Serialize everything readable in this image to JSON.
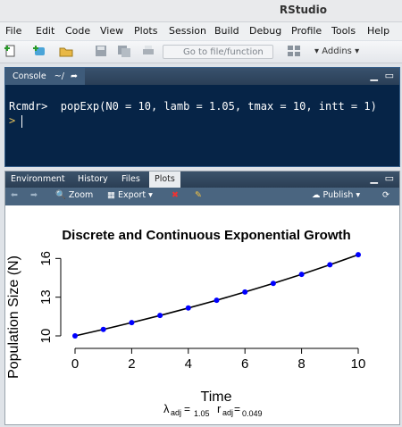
{
  "app": {
    "title": "RStudio"
  },
  "menu": [
    "File",
    "Edit",
    "Code",
    "View",
    "Plots",
    "Session",
    "Build",
    "Debug",
    "Profile",
    "Tools",
    "Help"
  ],
  "toolbar": {
    "goto_placeholder": "Go to file/function",
    "addins_label": "Addins"
  },
  "console": {
    "tab_label": "Console",
    "path": "~/",
    "lines": [
      "Rcmdr>  popExp(N0 = 10, lamb = 1.05, tmax = 10, intt = 1)",
      ">"
    ]
  },
  "plots_pane": {
    "tabs": [
      "Environment",
      "History",
      "Files",
      "Plots"
    ],
    "active_tab": "Plots",
    "toolbar": {
      "zoom": "Zoom",
      "export": "Export",
      "publish": "Publish"
    }
  },
  "chart_data": {
    "type": "line",
    "title": "Discrete and Continuous Exponential Growth",
    "xlabel": "Time",
    "ylabel": "Population Size (N)",
    "xlim": [
      0,
      10
    ],
    "ylim": [
      10,
      16.3
    ],
    "x_ticks": [
      0,
      2,
      4,
      6,
      8,
      10
    ],
    "y_ticks": [
      10,
      13,
      16
    ],
    "x": [
      0,
      1,
      2,
      3,
      4,
      5,
      6,
      7,
      8,
      9,
      10
    ],
    "series": [
      {
        "values": [
          10,
          10.5,
          11.03,
          11.58,
          12.16,
          12.76,
          13.4,
          14.07,
          14.77,
          15.51,
          16.29
        ],
        "color": "#0000ff",
        "style": "points"
      },
      {
        "values": [
          10,
          10.5,
          11.03,
          11.58,
          12.16,
          12.76,
          13.4,
          14.07,
          14.77,
          15.51,
          16.29
        ],
        "color": "#000000",
        "style": "line"
      }
    ],
    "subtitle": {
      "lambda_label": "λ",
      "lambda_sub": "adj",
      "lambda_value": "1.05",
      "r_label": "r",
      "r_sub": "adj",
      "r_value": "0.049"
    }
  }
}
